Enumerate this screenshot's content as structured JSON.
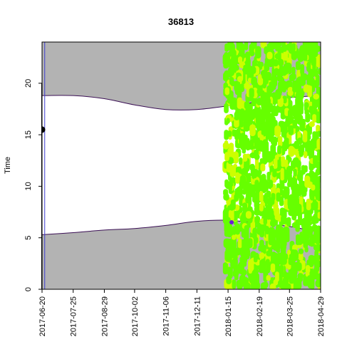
{
  "chart_data": {
    "type": "scatter",
    "title": "36813",
    "xlabel": "",
    "ylabel": "Time",
    "xlim": [
      "2017-06-20",
      "2018-04-29"
    ],
    "ylim": [
      0,
      24
    ],
    "x_ticks": [
      "2017-06-20",
      "2017-07-25",
      "2017-08-29",
      "2017-10-02",
      "2017-11-06",
      "2017-12-11",
      "2018-01-15",
      "2018-02-19",
      "2018-03-25",
      "2018-04-29"
    ],
    "y_ticks": [
      0,
      5,
      10,
      15,
      20
    ],
    "grid": false,
    "colors": {
      "night_fill": "#b3b3b3",
      "twilight_line": "#3b1055",
      "point_green": "#66ff00",
      "point_yellow": "#ccff00",
      "point_marker_start": "#000000",
      "point_marker_purple": "#6a1fd6",
      "vline": "#3f3fd0"
    },
    "sunset_curve": [
      {
        "date": "2017-06-20",
        "hour": 18.8
      },
      {
        "date": "2017-07-25",
        "hour": 18.8
      },
      {
        "date": "2017-08-29",
        "hour": 18.5
      },
      {
        "date": "2017-10-02",
        "hour": 17.9
      },
      {
        "date": "2017-11-06",
        "hour": 17.45
      },
      {
        "date": "2017-12-11",
        "hour": 17.45
      },
      {
        "date": "2018-01-15",
        "hour": 17.8
      },
      {
        "date": "2018-02-19",
        "hour": 18.2
      },
      {
        "date": "2018-03-25",
        "hour": 18.6
      },
      {
        "date": "2018-04-29",
        "hour": 18.8
      }
    ],
    "sunrise_curve": [
      {
        "date": "2017-06-20",
        "hour": 5.3
      },
      {
        "date": "2017-07-25",
        "hour": 5.5
      },
      {
        "date": "2017-08-29",
        "hour": 5.75
      },
      {
        "date": "2017-10-02",
        "hour": 5.9
      },
      {
        "date": "2017-11-06",
        "hour": 6.2
      },
      {
        "date": "2017-12-11",
        "hour": 6.6
      },
      {
        "date": "2018-01-15",
        "hour": 6.7
      },
      {
        "date": "2018-02-19",
        "hour": 6.4
      },
      {
        "date": "2018-03-25",
        "hour": 6.1
      },
      {
        "date": "2018-04-29",
        "hour": 5.5
      }
    ],
    "vertical_lines": [
      "2017-06-23",
      "2018-04-29"
    ],
    "special_points": [
      {
        "date": "2017-06-20",
        "hour": 15.5,
        "color": "#000000"
      },
      {
        "date": "2018-01-19",
        "hour": 6.5,
        "color": "#6a1fd6"
      }
    ],
    "detections_range": {
      "start": "2018-01-12",
      "end": "2018-04-29",
      "hour_min": 0,
      "hour_max": 24
    }
  }
}
